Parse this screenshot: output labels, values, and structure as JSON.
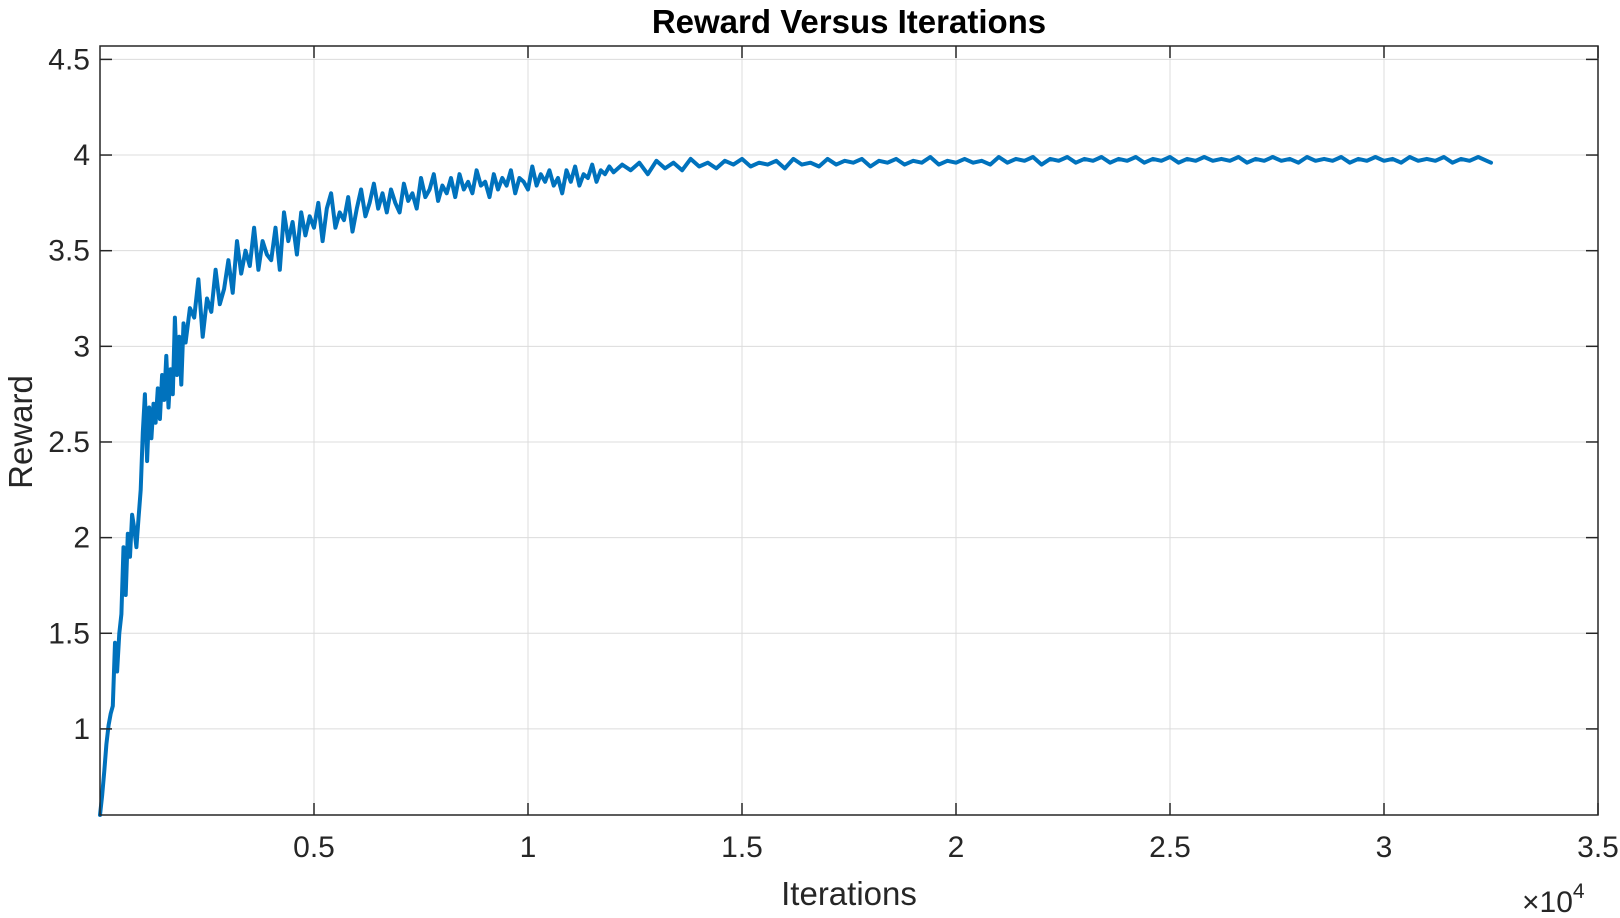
{
  "chart_data": {
    "type": "line",
    "title": "Reward Versus Iterations",
    "xlabel": "Iterations",
    "ylabel": "Reward",
    "x_exponent_base": "×10",
    "x_exponent_power": "4",
    "xlim": [
      0,
      3.5
    ],
    "ylim": [
      0.55,
      4.57
    ],
    "x_tick_values": [
      0.5,
      1,
      1.5,
      2,
      2.5,
      3,
      3.5
    ],
    "x_tick_labels": [
      "0.5",
      "1",
      "1.5",
      "2",
      "2.5",
      "3",
      "3.5"
    ],
    "y_tick_values": [
      1,
      1.5,
      2,
      2.5,
      3,
      3.5,
      4,
      4.5
    ],
    "y_tick_labels": [
      "1",
      "1.5",
      "2",
      "2.5",
      "3",
      "3.5",
      "4",
      "4.5"
    ],
    "grid": true,
    "box": true,
    "series": [
      {
        "color": "#0072bd",
        "x": [
          0.0,
          0.005,
          0.01,
          0.015,
          0.02,
          0.025,
          0.03,
          0.035,
          0.04,
          0.045,
          0.05,
          0.055,
          0.06,
          0.065,
          0.07,
          0.075,
          0.08,
          0.085,
          0.09,
          0.095,
          0.1,
          0.105,
          0.11,
          0.115,
          0.12,
          0.125,
          0.13,
          0.135,
          0.14,
          0.145,
          0.15,
          0.155,
          0.16,
          0.165,
          0.17,
          0.175,
          0.18,
          0.185,
          0.19,
          0.195,
          0.2,
          0.21,
          0.22,
          0.23,
          0.24,
          0.25,
          0.26,
          0.27,
          0.28,
          0.29,
          0.3,
          0.31,
          0.32,
          0.33,
          0.34,
          0.35,
          0.36,
          0.37,
          0.38,
          0.39,
          0.4,
          0.41,
          0.42,
          0.43,
          0.44,
          0.45,
          0.46,
          0.47,
          0.48,
          0.49,
          0.5,
          0.51,
          0.52,
          0.53,
          0.54,
          0.55,
          0.56,
          0.57,
          0.58,
          0.59,
          0.6,
          0.61,
          0.62,
          0.63,
          0.64,
          0.65,
          0.66,
          0.67,
          0.68,
          0.69,
          0.7,
          0.71,
          0.72,
          0.73,
          0.74,
          0.75,
          0.76,
          0.77,
          0.78,
          0.79,
          0.8,
          0.81,
          0.82,
          0.83,
          0.84,
          0.85,
          0.86,
          0.87,
          0.88,
          0.89,
          0.9,
          0.91,
          0.92,
          0.93,
          0.94,
          0.95,
          0.96,
          0.97,
          0.98,
          0.99,
          1.0,
          1.01,
          1.02,
          1.03,
          1.04,
          1.05,
          1.06,
          1.07,
          1.08,
          1.09,
          1.1,
          1.11,
          1.12,
          1.13,
          1.14,
          1.15,
          1.16,
          1.17,
          1.18,
          1.19,
          1.2,
          1.22,
          1.24,
          1.26,
          1.28,
          1.3,
          1.32,
          1.34,
          1.36,
          1.38,
          1.4,
          1.42,
          1.44,
          1.46,
          1.48,
          1.5,
          1.52,
          1.54,
          1.56,
          1.58,
          1.6,
          1.62,
          1.64,
          1.66,
          1.68,
          1.7,
          1.72,
          1.74,
          1.76,
          1.78,
          1.8,
          1.82,
          1.84,
          1.86,
          1.88,
          1.9,
          1.92,
          1.94,
          1.96,
          1.98,
          2.0,
          2.02,
          2.04,
          2.06,
          2.08,
          2.1,
          2.12,
          2.14,
          2.16,
          2.18,
          2.2,
          2.22,
          2.24,
          2.26,
          2.28,
          2.3,
          2.32,
          2.34,
          2.36,
          2.38,
          2.4,
          2.42,
          2.44,
          2.46,
          2.48,
          2.5,
          2.52,
          2.54,
          2.56,
          2.58,
          2.6,
          2.62,
          2.64,
          2.66,
          2.68,
          2.7,
          2.72,
          2.74,
          2.76,
          2.78,
          2.8,
          2.82,
          2.84,
          2.86,
          2.88,
          2.9,
          2.92,
          2.94,
          2.96,
          2.98,
          3.0,
          3.02,
          3.04,
          3.06,
          3.08,
          3.1,
          3.12,
          3.14,
          3.16,
          3.18,
          3.2,
          3.22,
          3.24,
          3.25
        ],
        "values": [
          0.55,
          0.65,
          0.78,
          0.92,
          1.02,
          1.08,
          1.12,
          1.45,
          1.3,
          1.5,
          1.6,
          1.95,
          1.7,
          2.02,
          1.9,
          2.12,
          2.05,
          1.95,
          2.1,
          2.25,
          2.55,
          2.75,
          2.4,
          2.68,
          2.52,
          2.7,
          2.6,
          2.78,
          2.62,
          2.85,
          2.72,
          2.95,
          2.68,
          2.88,
          2.75,
          3.15,
          2.85,
          3.05,
          2.8,
          3.12,
          3.02,
          3.2,
          3.15,
          3.35,
          3.05,
          3.25,
          3.18,
          3.4,
          3.22,
          3.3,
          3.45,
          3.28,
          3.55,
          3.38,
          3.5,
          3.42,
          3.62,
          3.4,
          3.55,
          3.48,
          3.45,
          3.62,
          3.4,
          3.7,
          3.55,
          3.65,
          3.48,
          3.7,
          3.58,
          3.68,
          3.62,
          3.75,
          3.55,
          3.72,
          3.8,
          3.62,
          3.7,
          3.66,
          3.78,
          3.6,
          3.72,
          3.82,
          3.68,
          3.75,
          3.85,
          3.72,
          3.8,
          3.7,
          3.82,
          3.75,
          3.7,
          3.85,
          3.76,
          3.8,
          3.72,
          3.88,
          3.78,
          3.82,
          3.9,
          3.76,
          3.84,
          3.8,
          3.88,
          3.78,
          3.9,
          3.82,
          3.86,
          3.8,
          3.92,
          3.84,
          3.86,
          3.78,
          3.9,
          3.82,
          3.88,
          3.84,
          3.92,
          3.8,
          3.88,
          3.86,
          3.82,
          3.94,
          3.84,
          3.9,
          3.86,
          3.92,
          3.84,
          3.88,
          3.8,
          3.92,
          3.86,
          3.94,
          3.84,
          3.9,
          3.88,
          3.95,
          3.86,
          3.92,
          3.9,
          3.94,
          3.91,
          3.95,
          3.92,
          3.96,
          3.9,
          3.97,
          3.93,
          3.96,
          3.92,
          3.98,
          3.94,
          3.96,
          3.93,
          3.97,
          3.95,
          3.98,
          3.94,
          3.96,
          3.95,
          3.97,
          3.93,
          3.98,
          3.95,
          3.96,
          3.94,
          3.98,
          3.95,
          3.97,
          3.96,
          3.98,
          3.94,
          3.97,
          3.96,
          3.98,
          3.95,
          3.97,
          3.96,
          3.99,
          3.95,
          3.97,
          3.96,
          3.98,
          3.96,
          3.97,
          3.95,
          3.99,
          3.96,
          3.98,
          3.97,
          3.99,
          3.95,
          3.98,
          3.97,
          3.99,
          3.96,
          3.98,
          3.97,
          3.99,
          3.96,
          3.98,
          3.97,
          3.99,
          3.96,
          3.98,
          3.97,
          3.99,
          3.96,
          3.98,
          3.97,
          3.99,
          3.97,
          3.98,
          3.97,
          3.99,
          3.96,
          3.98,
          3.97,
          3.99,
          3.97,
          3.98,
          3.96,
          3.99,
          3.97,
          3.98,
          3.97,
          3.99,
          3.96,
          3.98,
          3.97,
          3.99,
          3.97,
          3.98,
          3.96,
          3.99,
          3.97,
          3.98,
          3.97,
          3.99,
          3.96,
          3.98,
          3.97,
          3.99,
          3.97,
          3.96
        ]
      }
    ]
  }
}
